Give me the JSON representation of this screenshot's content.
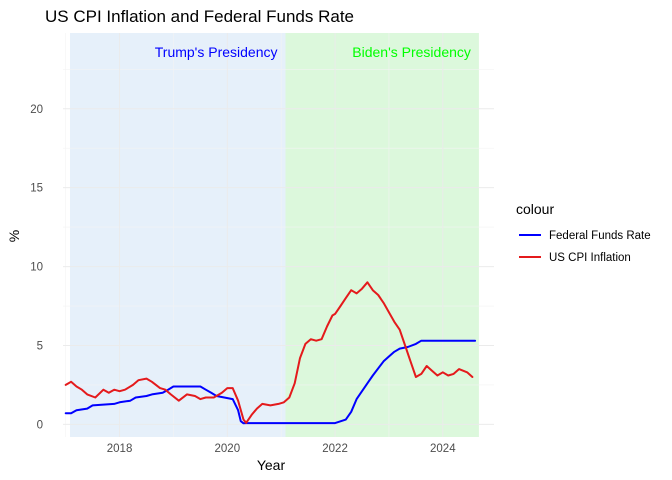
{
  "chart_data": {
    "type": "line",
    "title": "US CPI Inflation and Federal Funds Rate",
    "xlabel": "Year",
    "ylabel": "%",
    "xlim": [
      2016.95,
      2024.95
    ],
    "ylim": [
      -0.8,
      24.8
    ],
    "x_ticks": [
      2018,
      2020,
      2022,
      2024
    ],
    "y_ticks": [
      0,
      5,
      10,
      15,
      20
    ],
    "grid": true,
    "legend": {
      "title": "colour",
      "placement": "right",
      "entries": [
        "Federal Funds Rate",
        "US CPI Inflation"
      ]
    },
    "shaded_regions": [
      {
        "label": "Trump's Presidency",
        "x_start": 2017.08,
        "x_end": 2021.08,
        "color": "#e6f0fa",
        "label_color": "#0000ff"
      },
      {
        "label": "Biden's Presidency",
        "x_start": 2021.08,
        "x_end": 2024.67,
        "color": "#dcf8dc",
        "label_color": "#00ff00"
      }
    ],
    "series": [
      {
        "name": "Federal Funds Rate",
        "color": "#0000ff",
        "x": [
          2017.0,
          2017.1,
          2017.2,
          2017.4,
          2017.5,
          2017.9,
          2018.0,
          2018.2,
          2018.3,
          2018.5,
          2018.6,
          2018.8,
          2018.9,
          2019.0,
          2019.5,
          2019.6,
          2019.7,
          2019.8,
          2020.1,
          2020.2,
          2020.25,
          2020.3,
          2020.35,
          2021.0,
          2022.0,
          2022.2,
          2022.3,
          2022.4,
          2022.6,
          2022.7,
          2022.9,
          2023.0,
          2023.1,
          2023.2,
          2023.35,
          2023.5,
          2023.6,
          2024.0,
          2024.6
        ],
        "y": [
          0.7,
          0.7,
          0.9,
          1.0,
          1.2,
          1.3,
          1.4,
          1.5,
          1.7,
          1.8,
          1.9,
          2.0,
          2.2,
          2.4,
          2.4,
          2.2,
          2.0,
          1.8,
          1.6,
          0.9,
          0.2,
          0.07,
          0.08,
          0.08,
          0.08,
          0.3,
          0.8,
          1.6,
          2.6,
          3.1,
          4.0,
          4.3,
          4.6,
          4.8,
          4.9,
          5.1,
          5.3,
          5.3,
          5.3
        ]
      },
      {
        "name": "US CPI Inflation",
        "color": "#e41a1c",
        "x": [
          2017.0,
          2017.1,
          2017.2,
          2017.3,
          2017.4,
          2017.55,
          2017.7,
          2017.8,
          2017.9,
          2018.0,
          2018.1,
          2018.25,
          2018.35,
          2018.5,
          2018.6,
          2018.75,
          2018.85,
          2018.95,
          2019.1,
          2019.25,
          2019.4,
          2019.5,
          2019.6,
          2019.75,
          2019.9,
          2020.0,
          2020.1,
          2020.2,
          2020.3,
          2020.35,
          2020.45,
          2020.55,
          2020.65,
          2020.8,
          2020.95,
          2021.05,
          2021.15,
          2021.25,
          2021.35,
          2021.45,
          2021.55,
          2021.65,
          2021.75,
          2021.85,
          2021.95,
          2022.0,
          2022.1,
          2022.2,
          2022.3,
          2022.4,
          2022.5,
          2022.6,
          2022.7,
          2022.8,
          2022.9,
          2023.0,
          2023.1,
          2023.2,
          2023.3,
          2023.4,
          2023.5,
          2023.6,
          2023.7,
          2023.8,
          2023.9,
          2024.0,
          2024.1,
          2024.2,
          2024.3,
          2024.45,
          2024.55
        ],
        "y": [
          2.5,
          2.7,
          2.4,
          2.2,
          1.9,
          1.7,
          2.2,
          2.0,
          2.2,
          2.1,
          2.2,
          2.5,
          2.8,
          2.9,
          2.7,
          2.3,
          2.2,
          1.9,
          1.5,
          1.9,
          1.8,
          1.6,
          1.7,
          1.7,
          2.0,
          2.3,
          2.3,
          1.5,
          0.3,
          0.1,
          0.6,
          1.0,
          1.3,
          1.2,
          1.3,
          1.4,
          1.7,
          2.6,
          4.2,
          5.1,
          5.4,
          5.3,
          5.4,
          6.2,
          6.9,
          7.0,
          7.5,
          8.0,
          8.5,
          8.3,
          8.6,
          9.0,
          8.5,
          8.2,
          7.7,
          7.1,
          6.5,
          6.0,
          5.0,
          4.0,
          3.0,
          3.2,
          3.7,
          3.4,
          3.1,
          3.3,
          3.1,
          3.2,
          3.5,
          3.3,
          3.0
        ]
      }
    ]
  }
}
